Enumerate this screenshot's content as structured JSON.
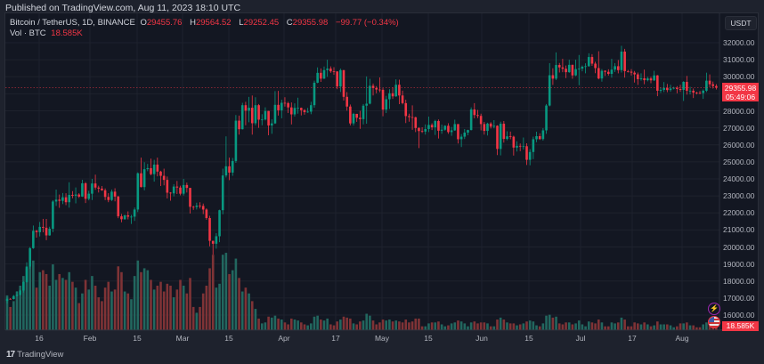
{
  "published": "Published on TradingView.com, Aug 11, 2023 18:10 UTC",
  "legend": {
    "symbol": "Bitcoin / TetherUS, 1D, BINANCE",
    "o_label": "O",
    "o": "29455.76",
    "h_label": "H",
    "h": "29564.52",
    "l_label": "L",
    "l": "29252.45",
    "c_label": "C",
    "c": "29355.98",
    "change": "−99.77 (−0.34%)",
    "vol_label": "Vol · BTC",
    "vol": "18.585K"
  },
  "currency_button": "USDT",
  "last_price": {
    "price": "29355.98",
    "countdown": "05:49:06"
  },
  "volume_badge": "18.585K",
  "footer": {
    "logo": "17",
    "brand": "TradingView"
  },
  "colors": {
    "up": "#089981",
    "down": "#f23645",
    "volume_up": "#22675f",
    "volume_down": "#7f3336",
    "background": "#131722",
    "grid": "#1e222d"
  },
  "icons": [
    "lightning-icon",
    "us-flag-icon",
    "tradingview-logo-icon"
  ],
  "chart_data": {
    "type": "candlestick",
    "symbol": "BTCUSDT",
    "interval": "1D",
    "price_axis": {
      "ticks": [
        16000,
        17000,
        18000,
        19000,
        20000,
        21000,
        22000,
        23000,
        24000,
        25000,
        26000,
        27000,
        28000,
        30000,
        31000,
        32000
      ],
      "labels": [
        "16000.00",
        "17000.00",
        "18000.00",
        "19000.00",
        "20000.00",
        "21000.00",
        "22000.00",
        "23000.00",
        "24000.00",
        "25000.00",
        "26000.00",
        "27000.00",
        "28000.00",
        "30000.00",
        "31000.00",
        "32000.00"
      ],
      "range": [
        15200,
        32700
      ]
    },
    "time_axis": {
      "labels": [
        "16",
        "Feb",
        "15",
        "Mar",
        "15",
        "Apr",
        "17",
        "May",
        "15",
        "Jun",
        "15",
        "Jul",
        "17",
        "Aug"
      ]
    },
    "volume_unit": "K BTC",
    "first_open": 16830,
    "months": [
      {
        "month": "2023-01",
        "first_day": 6,
        "close": [
          16950,
          16940,
          17120,
          17190,
          17440,
          17940,
          18850,
          19930,
          20950,
          20870,
          21180,
          21130,
          20680,
          21070,
          22670,
          22780,
          22710,
          22920,
          22630,
          23060,
          23010,
          23080,
          22960,
          23740,
          22830,
          23130
        ],
        "high": [
          17040,
          16990,
          17180,
          17400,
          17490,
          18000,
          19100,
          19990,
          21260,
          21000,
          21470,
          21650,
          21650,
          21190,
          22750,
          23370,
          23080,
          23170,
          23160,
          23800,
          23280,
          23500,
          23160,
          23950,
          23810,
          23300
        ],
        "low": [
          16680,
          16910,
          16910,
          17100,
          17150,
          17320,
          17900,
          18710,
          19890,
          20550,
          20620,
          20860,
          20400,
          20660,
          20870,
          22410,
          22300,
          22520,
          22460,
          22310,
          22860,
          22560,
          22880,
          22940,
          22580,
          22740
        ],
        "volume": [
          180,
          120,
          150,
          200,
          230,
          280,
          320,
          330,
          360,
          220,
          300,
          310,
          290,
          230,
          340,
          260,
          290,
          270,
          260,
          300,
          250,
          220,
          140,
          190,
          260,
          210
        ]
      },
      {
        "month": "2023-02",
        "first_day": 1,
        "close": [
          23730,
          23490,
          23430,
          23330,
          22940,
          22760,
          23250,
          22960,
          21800,
          21630,
          21860,
          21780,
          21780,
          22200,
          24330,
          23520,
          24570,
          24630,
          24280,
          24840,
          24430,
          24180,
          23940,
          23190,
          23150,
          23550,
          23490,
          23130
        ],
        "high": [
          24000,
          24250,
          23600,
          23580,
          23440,
          23160,
          23370,
          23450,
          23010,
          21940,
          21900,
          22090,
          21890,
          22320,
          24380,
          25250,
          24980,
          24880,
          25190,
          25120,
          25250,
          24480,
          24600,
          24140,
          23220,
          23690,
          23880,
          23600
        ],
        "low": [
          22760,
          23360,
          23200,
          23300,
          22750,
          22630,
          22700,
          22680,
          21690,
          21450,
          21600,
          21620,
          21350,
          21530,
          22050,
          23500,
          23330,
          24450,
          24210,
          23840,
          24150,
          23580,
          23620,
          22850,
          22720,
          22970,
          23110,
          23030
        ],
        "volume": [
          280,
          230,
          170,
          150,
          220,
          250,
          200,
          210,
          330,
          300,
          200,
          190,
          160,
          280,
          360,
          300,
          320,
          310,
          260,
          210,
          230,
          250,
          200,
          240,
          230,
          170,
          210,
          260
        ]
      },
      {
        "month": "2023-03",
        "first_day": 1,
        "close": [
          23640,
          23470,
          22360,
          22350,
          22430,
          22410,
          22200,
          21700,
          20360,
          20190,
          20630,
          22160,
          24200,
          24740,
          24370,
          25050,
          27420,
          26920,
          28330,
          28010,
          28180,
          27270,
          28330,
          27480,
          27490,
          27990,
          27140,
          27260,
          28350,
          28030,
          28470
        ],
        "high": [
          24000,
          23780,
          23480,
          22420,
          22600,
          22630,
          22550,
          22270,
          21830,
          20370,
          20810,
          22190,
          24600,
          26500,
          25250,
          25230,
          27750,
          27720,
          28470,
          28530,
          28820,
          28900,
          28800,
          28400,
          27800,
          28200,
          28000,
          27500,
          29160,
          29170,
          28650
        ],
        "low": [
          23020,
          23200,
          21970,
          22180,
          22200,
          22260,
          21930,
          21600,
          20040,
          19550,
          19900,
          20280,
          21920,
          24080,
          23930,
          24180,
          24940,
          26600,
          26900,
          27150,
          27330,
          26600,
          27150,
          27000,
          27150,
          27440,
          26560,
          26650,
          27230,
          27720,
          27560
        ],
        "volume": [
          230,
          190,
          270,
          120,
          90,
          120,
          190,
          230,
          320,
          390,
          220,
          240,
          390,
          400,
          290,
          310,
          370,
          270,
          200,
          220,
          190,
          150,
          110,
          60,
          35,
          40,
          70,
          65,
          75,
          60,
          55
        ]
      },
      {
        "month": "2023-04",
        "first_day": 1,
        "close": [
          28450,
          28200,
          27790,
          28170,
          28170,
          28040,
          27920,
          27950,
          28330,
          29650,
          30230,
          29890,
          30390,
          30480,
          30320,
          30310,
          29430,
          30390,
          28820,
          28250,
          27260,
          27820,
          27590,
          27510,
          28300,
          28420,
          29470,
          29340,
          29250,
          29230
        ],
        "high": [
          28800,
          28530,
          28490,
          28440,
          28770,
          28190,
          28100,
          28170,
          28530,
          29770,
          30550,
          30490,
          30600,
          31000,
          30610,
          30560,
          30330,
          30480,
          30400,
          29100,
          28370,
          27880,
          27820,
          28000,
          28400,
          30020,
          29880,
          29600,
          29450,
          29960
        ],
        "low": [
          28250,
          27870,
          27200,
          27660,
          27830,
          27730,
          27770,
          27880,
          27800,
          28180,
          29620,
          29700,
          29870,
          30000,
          30230,
          30110,
          29270,
          29100,
          28600,
          28010,
          27140,
          27130,
          27350,
          26940,
          27200,
          27240,
          28380,
          28900,
          29030,
          29090
        ],
        "volume": [
          40,
          30,
          60,
          55,
          50,
          40,
          30,
          25,
          35,
          70,
          75,
          55,
          50,
          60,
          30,
          25,
          45,
          55,
          70,
          65,
          60,
          35,
          30,
          45,
          50,
          85,
          75,
          50,
          30,
          40
        ]
      },
      {
        "month": "2023-05",
        "first_day": 1,
        "close": [
          28070,
          28680,
          29030,
          28850,
          29530,
          28900,
          28450,
          27690,
          27630,
          27620,
          26990,
          26810,
          26780,
          26930,
          27170,
          27030,
          27400,
          26830,
          26890,
          27120,
          26750,
          26850,
          27220,
          26330,
          26480,
          26720,
          26870,
          28080,
          27750,
          27700,
          27220
        ],
        "high": [
          29330,
          28880,
          29270,
          29380,
          29850,
          29830,
          29180,
          28650,
          27830,
          28320,
          27650,
          27040,
          27030,
          27200,
          27660,
          27270,
          27470,
          27490,
          27190,
          27150,
          27270,
          27050,
          27480,
          27220,
          26630,
          26930,
          26890,
          28200,
          28450,
          28050,
          27830
        ],
        "low": [
          27680,
          27870,
          28110,
          28700,
          28820,
          28390,
          28380,
          27280,
          27360,
          26880,
          26750,
          25810,
          26700,
          26600,
          26750,
          26870,
          26580,
          26370,
          26650,
          26830,
          26650,
          26530,
          26820,
          26080,
          25870,
          26340,
          26560,
          26850,
          27560,
          27570,
          26850
        ],
        "volume": [
          55,
          50,
          55,
          45,
          50,
          45,
          40,
          55,
          40,
          45,
          60,
          60,
          20,
          20,
          35,
          40,
          40,
          45,
          30,
          20,
          25,
          35,
          40,
          50,
          45,
          35,
          20,
          40,
          45,
          35,
          40
        ]
      },
      {
        "month": "2023-06",
        "first_day": 1,
        "close": [
          26820,
          27250,
          27070,
          27120,
          25760,
          27240,
          26350,
          26500,
          26480,
          25840,
          25940,
          25900,
          25920,
          25120,
          25580,
          26330,
          26510,
          26340,
          26850,
          28310,
          30090,
          29890,
          30690,
          30550,
          30470,
          30270,
          30700,
          30080,
          30450,
          30480
        ],
        "high": [
          27350,
          27300,
          27330,
          27450,
          27150,
          27360,
          27400,
          26800,
          26780,
          26540,
          26210,
          26080,
          26430,
          26090,
          25750,
          26480,
          26770,
          26680,
          26980,
          28400,
          30800,
          30500,
          31430,
          30810,
          31050,
          30660,
          31000,
          30710,
          31000,
          31280
        ],
        "low": [
          26600,
          26550,
          26960,
          26970,
          25400,
          25380,
          26130,
          26270,
          26330,
          25370,
          25610,
          25630,
          25720,
          24820,
          24800,
          25160,
          26160,
          26290,
          26250,
          26650,
          28260,
          29520,
          29810,
          30250,
          30270,
          29920,
          30230,
          29880,
          30040,
          29500
        ],
        "volume": [
          40,
          35,
          20,
          20,
          55,
          65,
          55,
          40,
          35,
          35,
          25,
          30,
          35,
          45,
          50,
          45,
          25,
          20,
          35,
          75,
          80,
          65,
          70,
          35,
          30,
          40,
          40,
          30,
          35,
          50
        ]
      },
      {
        "month": "2023-07",
        "first_day": 1,
        "close": [
          30590,
          30620,
          31160,
          30770,
          30510,
          29900,
          30350,
          30290,
          30170,
          30420,
          30620,
          30390,
          31480,
          30330,
          30300,
          30240,
          30140,
          29860,
          29910,
          29800,
          29900,
          29790,
          30080,
          29180,
          29230,
          29350,
          29220,
          29310,
          29350,
          29280,
          29230
        ],
        "high": [
          30660,
          30790,
          31380,
          31330,
          30880,
          31500,
          30450,
          30380,
          30440,
          31050,
          30800,
          30980,
          31820,
          31640,
          30400,
          30450,
          30340,
          30250,
          30200,
          30420,
          30000,
          30000,
          30350,
          30100,
          29380,
          29690,
          29580,
          29530,
          29410,
          29450,
          29530
        ],
        "low": [
          30320,
          30200,
          30590,
          30640,
          30210,
          29850,
          29710,
          30050,
          30070,
          29950,
          30280,
          30200,
          30250,
          29950,
          30250,
          30070,
          29660,
          29520,
          29770,
          29560,
          29730,
          29620,
          29750,
          28860,
          29050,
          29100,
          29090,
          29120,
          29260,
          29030,
          29110
        ],
        "volume": [
          30,
          20,
          45,
          40,
          35,
          55,
          40,
          20,
          20,
          40,
          35,
          40,
          65,
          55,
          20,
          20,
          40,
          35,
          30,
          40,
          30,
          20,
          25,
          45,
          30,
          30,
          30,
          25,
          15,
          20,
          35
        ]
      },
      {
        "month": "2023-08",
        "first_day": 1,
        "close": [
          29700,
          29180,
          29180,
          29070,
          29050,
          29040,
          29180,
          29770,
          29560,
          29455.76,
          29355.98
        ],
        "high": [
          29740,
          30050,
          29410,
          29310,
          29120,
          29170,
          29250,
          30240,
          30140,
          29720,
          29564.52
        ],
        "low": [
          28580,
          28950,
          28960,
          28750,
          28960,
          28980,
          28700,
          29100,
          29390,
          29310,
          29252.45
        ],
        "volume": [
          35,
          40,
          25,
          25,
          15,
          15,
          30,
          40,
          30,
          25,
          18.585
        ]
      }
    ]
  }
}
